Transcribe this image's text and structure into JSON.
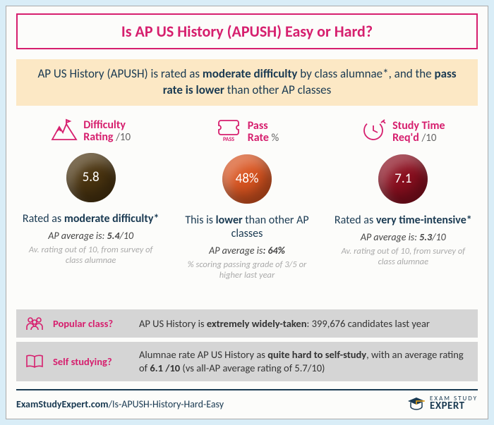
{
  "title": "Is AP US History (APUSH) Easy or Hard?",
  "summary_html": "AP US History (APUSH) is rated as <b>moderate difficulty</b> by class alumnae*, and the <b>pass rate is lower</b> than other AP classes",
  "metrics": {
    "difficulty": {
      "title_line1": "Difficulty",
      "title_line2": "Rating",
      "title_suffix": "/10",
      "value": "5.8",
      "ball_color": "#4a3410",
      "desc_html": "Rated as <b>moderate difficulty*</b>",
      "avg_html": "AP average is: <b>5.4</b>/10",
      "note": "Av. rating out of 10, from survey of class alumnae"
    },
    "pass": {
      "title_line1": "Pass",
      "title_line2": "Rate",
      "title_suffix": "%",
      "value": "48%",
      "ball_color": "#d85420",
      "desc_html": "This is <b>lower</b> than other AP classes",
      "avg_html": "AP average is<b>: 64%</b>",
      "note": "% scoring passing grade of 3/5 or higher last year"
    },
    "time": {
      "title_line1": "Study Time",
      "title_line2": "Req'd",
      "title_suffix": "/10",
      "value": "7.1",
      "ball_color": "#8a0f1f",
      "desc_html": "Rated as <b>very time-intensive*</b>",
      "avg_html": "AP average is: <b>5.3</b>/10",
      "note": "Av. rating out of 10, from survey of class alumnae"
    }
  },
  "rows": {
    "popular": {
      "label": "Popular class?",
      "text_html": "AP US History is <b>extremely widely-taken</b>: 399,676 candidates last year"
    },
    "selfstudy": {
      "label": "Self studying?",
      "text_html": "Alumnae rate AP US History as <b>quite hard to self-study</b>, with an average rating of <b>6.1 /10</b> (vs all-AP average rating of 5.7/10)"
    }
  },
  "footer": {
    "domain": "ExamStudyExpert.com",
    "slug": "/Is-APUSH-History-Hard-Easy",
    "logo_small": "EXAM STUDY",
    "logo_big": "EXPERT"
  },
  "colors": {
    "accent": "#d61f6e",
    "dark": "#1a3a52",
    "page_bg": "#d9edf7",
    "summary_bg": "#fce8c5",
    "row_bg": "#d5d5d5"
  }
}
